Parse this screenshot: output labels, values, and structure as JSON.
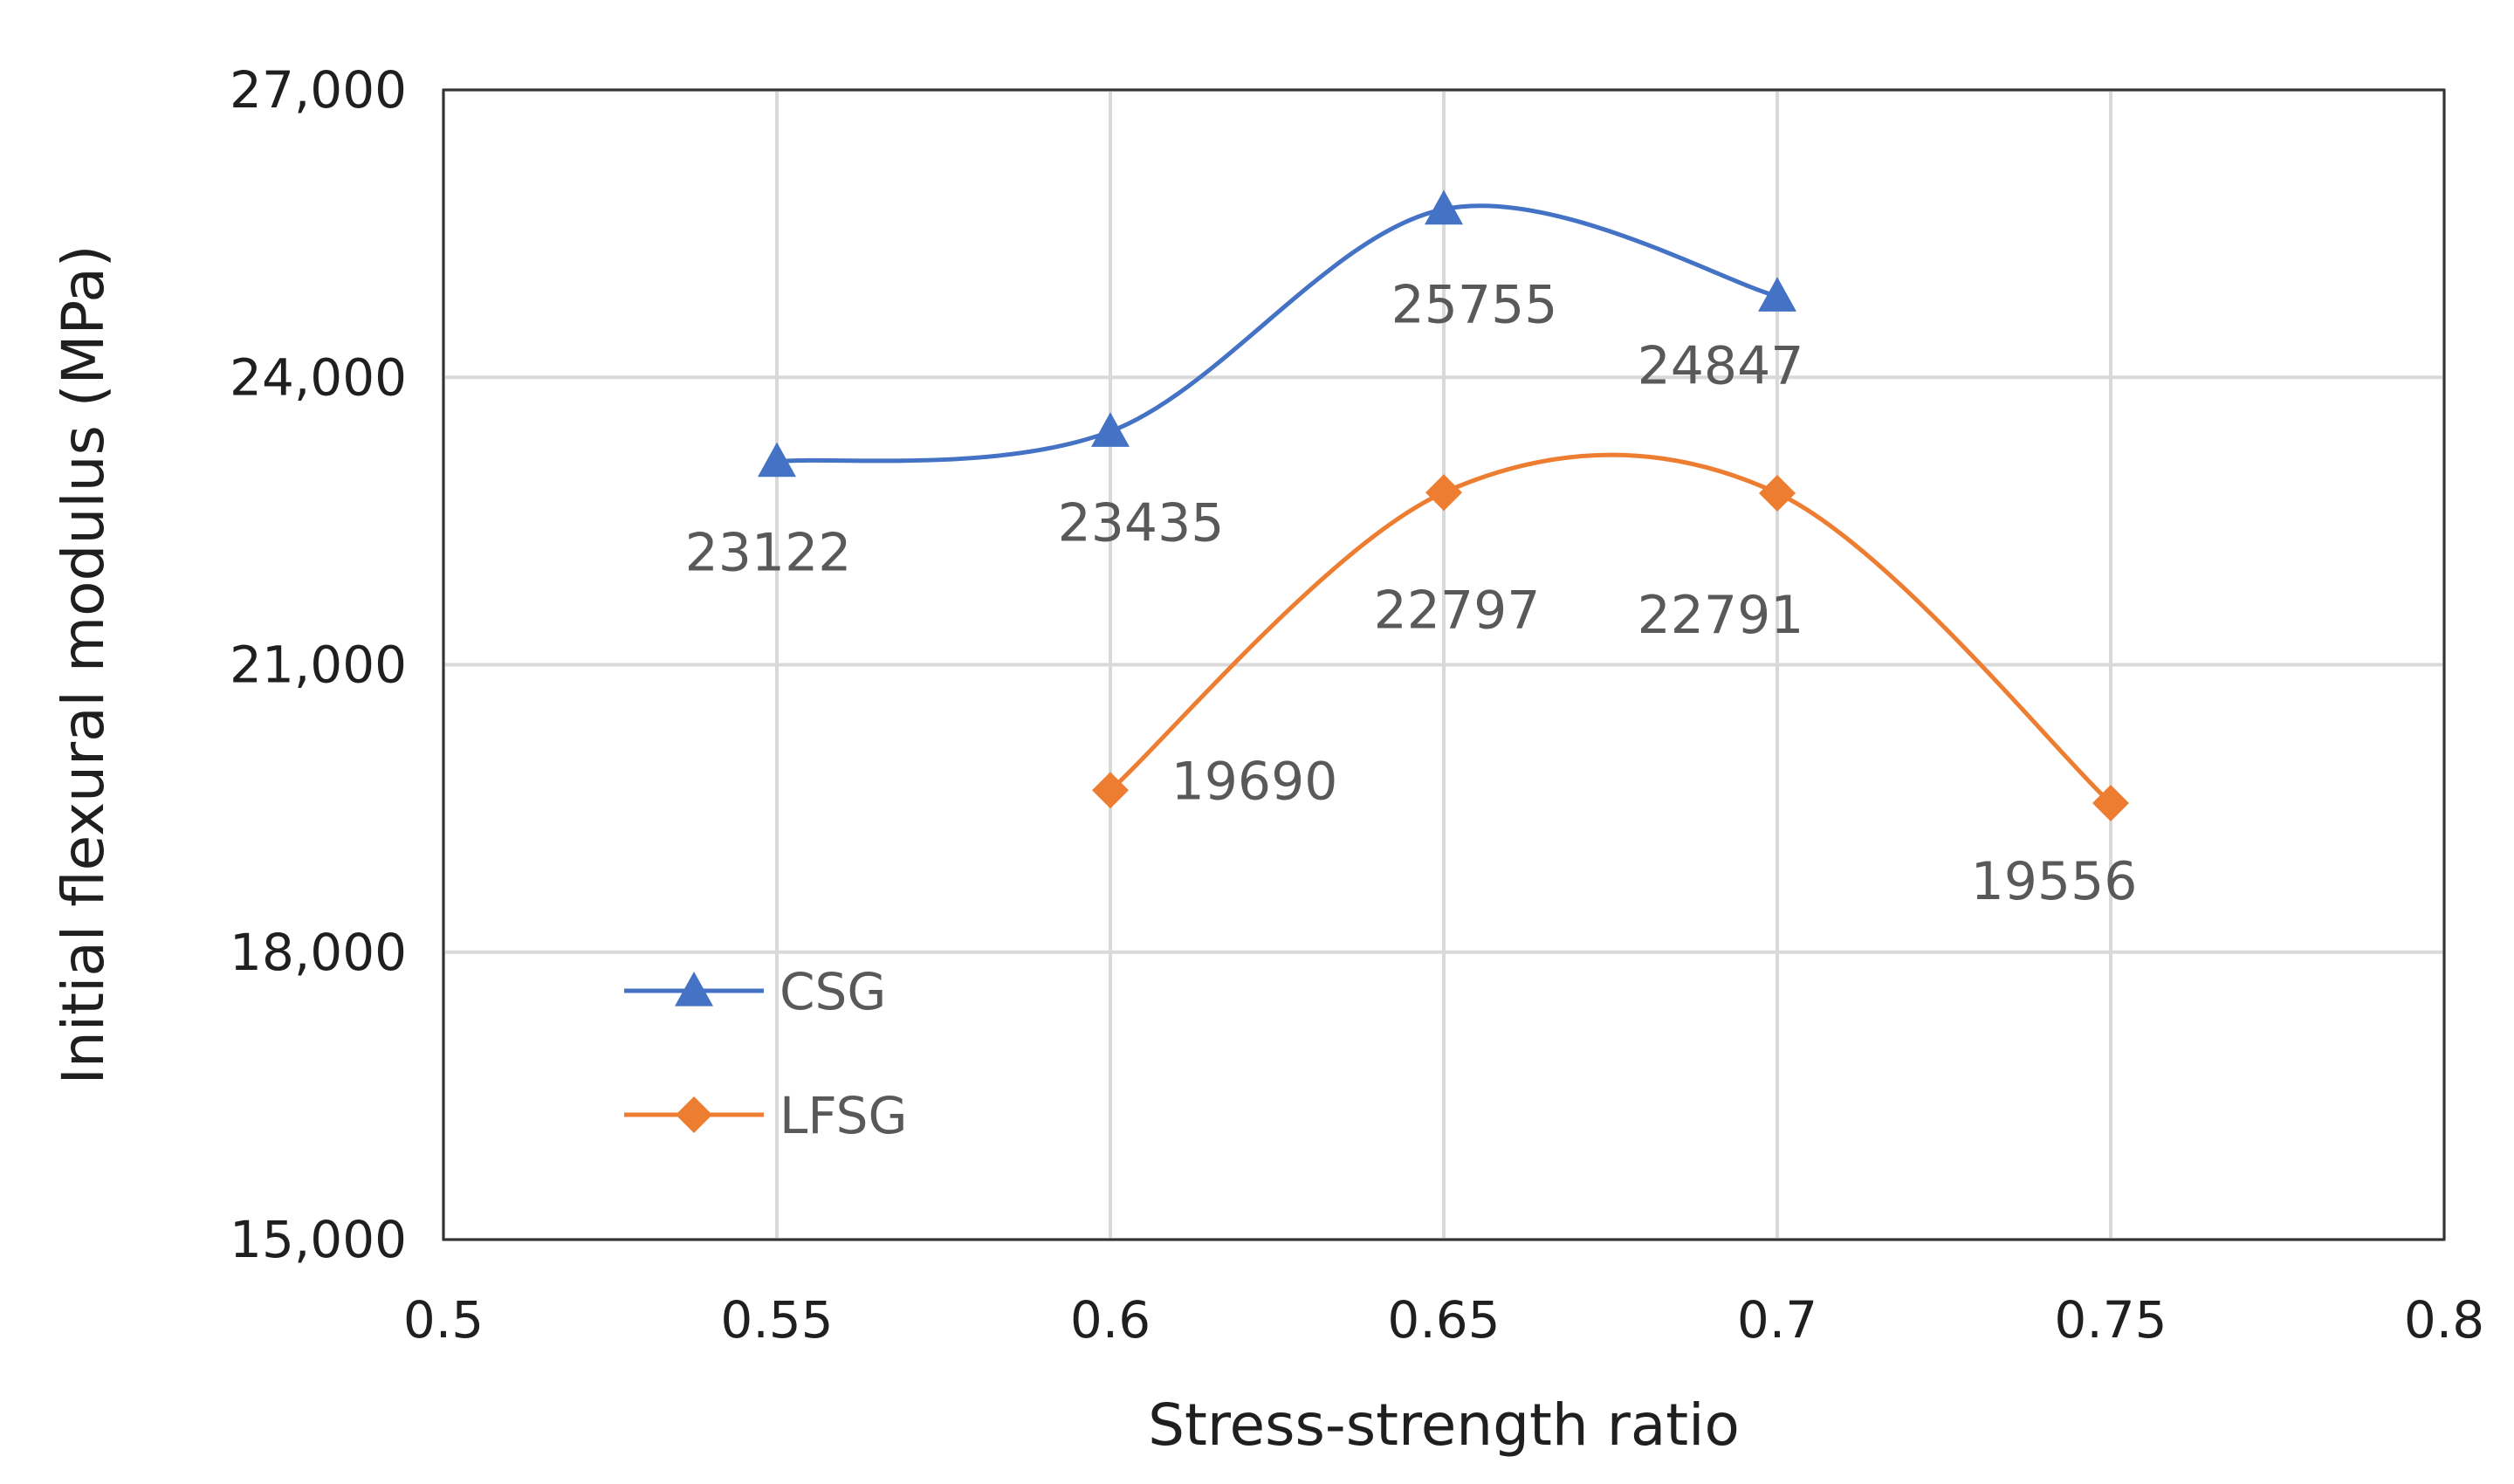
{
  "chart_data": {
    "type": "line",
    "title": "",
    "xlabel": "Stress-strength ratio",
    "ylabel": "Initial flexural modulus (MPa)",
    "xlim": [
      0.5,
      0.8
    ],
    "ylim": [
      15000,
      27000
    ],
    "grid": true,
    "x_ticks": [
      0.5,
      0.55,
      0.6,
      0.65,
      0.7,
      0.75,
      0.8
    ],
    "x_tick_labels": [
      "0.5",
      "0.55",
      "0.6",
      "0.65",
      "0.7",
      "0.75",
      "0.8"
    ],
    "y_ticks": [
      15000,
      18000,
      21000,
      24000,
      27000
    ],
    "y_tick_labels": [
      "15,000",
      "18,000",
      "21,000",
      "24,000",
      "27,000"
    ],
    "legend_position": "lower-left",
    "series": [
      {
        "name": "CSG",
        "marker": "triangle",
        "color": "#4472C4",
        "x": [
          0.55,
          0.6,
          0.65,
          0.7
        ],
        "values": [
          23122,
          23435,
          25755,
          24847
        ],
        "labels": [
          "23122",
          "23435",
          "25755",
          "24847"
        ]
      },
      {
        "name": "LFSG",
        "marker": "diamond",
        "color": "#ED7D31",
        "x": [
          0.6,
          0.65,
          0.7,
          0.75
        ],
        "values": [
          19690,
          22797,
          22791,
          19556
        ],
        "labels": [
          "19690",
          "22797",
          "22791",
          "19556"
        ]
      }
    ]
  }
}
